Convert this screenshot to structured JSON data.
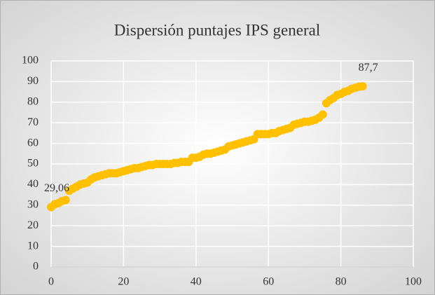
{
  "chart_data": {
    "type": "scatter",
    "title": "Dispersión puntajes IPS general",
    "x": [
      0,
      1,
      2,
      3,
      4,
      5,
      6,
      7,
      8,
      9,
      10,
      11,
      12,
      13,
      14,
      15,
      16,
      17,
      18,
      19,
      20,
      21,
      22,
      23,
      24,
      25,
      26,
      27,
      28,
      29,
      30,
      31,
      32,
      33,
      34,
      35,
      36,
      37,
      38,
      39,
      40,
      41,
      42,
      43,
      44,
      45,
      46,
      47,
      48,
      49,
      50,
      51,
      52,
      53,
      54,
      55,
      56,
      57,
      58,
      59,
      60,
      61,
      62,
      63,
      64,
      65,
      66,
      67,
      68,
      69,
      70,
      71,
      72,
      73,
      74,
      75,
      76,
      77,
      78,
      79,
      80,
      81,
      82,
      83,
      84,
      85,
      86
    ],
    "values": [
      29.06,
      30.5,
      31,
      32,
      32.5,
      37,
      38,
      39,
      40,
      40.5,
      41,
      42.5,
      43.5,
      44,
      44.5,
      45,
      45.5,
      45.5,
      45.5,
      46,
      46.5,
      47,
      47.5,
      48,
      48,
      48.5,
      49,
      49.5,
      49.5,
      50,
      50,
      50,
      50,
      50,
      50.5,
      50.5,
      51,
      51,
      51,
      53,
      53,
      53.5,
      54.5,
      55,
      55,
      55.5,
      56,
      56.5,
      57,
      58.5,
      59,
      59.5,
      60,
      60.5,
      61,
      61.5,
      62,
      64.5,
      64.5,
      64.5,
      64.5,
      65,
      65,
      66,
      66.5,
      67,
      67.5,
      69,
      69.5,
      70,
      70.5,
      70.5,
      71,
      71.5,
      72.5,
      74,
      79.5,
      81,
      82,
      83.5,
      84,
      85,
      85.5,
      86.5,
      87,
      87.5,
      87.7
    ],
    "value_labels": [
      "29,06",
      null,
      null,
      null,
      null,
      null,
      null,
      null,
      null,
      null,
      null,
      null,
      null,
      null,
      null,
      null,
      null,
      null,
      null,
      null,
      null,
      null,
      null,
      null,
      null,
      null,
      null,
      null,
      null,
      null,
      null,
      null,
      null,
      null,
      null,
      null,
      null,
      null,
      null,
      null,
      null,
      null,
      null,
      null,
      null,
      null,
      null,
      null,
      null,
      null,
      null,
      null,
      null,
      null,
      null,
      null,
      null,
      null,
      null,
      null,
      null,
      null,
      null,
      null,
      null,
      null,
      null,
      null,
      null,
      null,
      null,
      null,
      null,
      null,
      null,
      null,
      null,
      null,
      null,
      null,
      null,
      null,
      null,
      null,
      null,
      null,
      "87,7"
    ],
    "color": "#ffc000",
    "xlim": [
      0,
      100
    ],
    "xticks": [
      0,
      20,
      40,
      60,
      80,
      100
    ],
    "ylim": [
      0,
      100
    ],
    "yticks": [
      0,
      10,
      20,
      30,
      40,
      50,
      60,
      70,
      80,
      90,
      100
    ],
    "grid": true
  }
}
